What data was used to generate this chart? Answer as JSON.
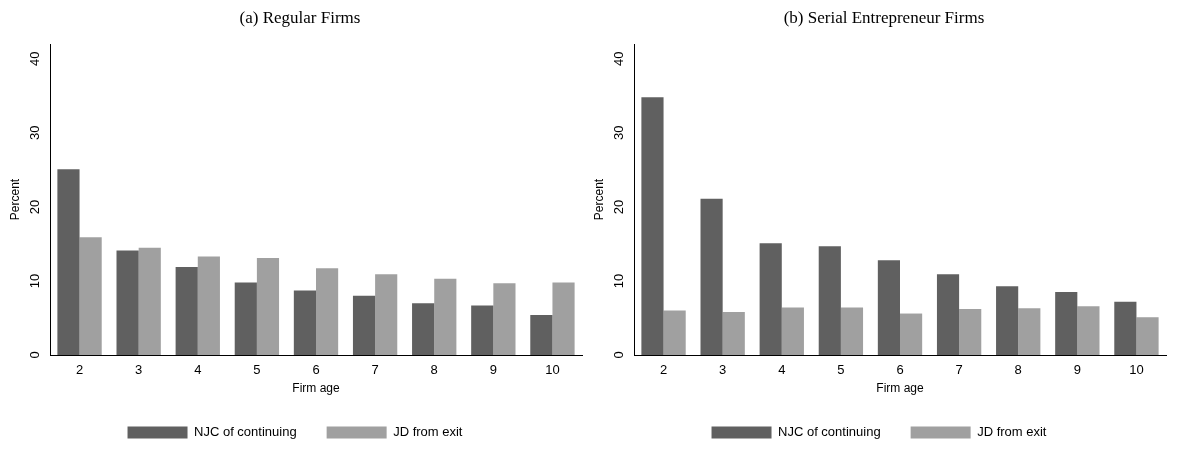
{
  "chart_data": [
    {
      "type": "bar",
      "title": "(a) Regular Firms",
      "xlabel": "Firm age",
      "ylabel": "Percent",
      "categories": [
        "2",
        "3",
        "4",
        "5",
        "6",
        "7",
        "8",
        "9",
        "10"
      ],
      "series": [
        {
          "name": "NJC of continuing",
          "color": "#606060",
          "values": [
            25.1,
            14.1,
            11.9,
            9.8,
            8.7,
            8.0,
            7.0,
            6.7,
            5.4
          ]
        },
        {
          "name": "JD from exit",
          "color": "#a0a0a0",
          "values": [
            15.9,
            14.5,
            13.3,
            13.1,
            11.7,
            10.9,
            10.3,
            9.7,
            9.8
          ]
        }
      ],
      "ylim": [
        0,
        42
      ],
      "yticks": [
        0,
        10,
        20,
        30,
        40
      ],
      "grid": false,
      "legend": "bottom"
    },
    {
      "type": "bar",
      "title": "(b) Serial Entrepreneur Firms",
      "xlabel": "Firm age",
      "ylabel": "Percent",
      "categories": [
        "2",
        "3",
        "4",
        "5",
        "6",
        "7",
        "8",
        "9",
        "10"
      ],
      "series": [
        {
          "name": "NJC of continuing",
          "color": "#606060",
          "values": [
            34.8,
            21.1,
            15.1,
            14.7,
            12.8,
            10.9,
            9.3,
            8.5,
            7.2
          ]
        },
        {
          "name": "JD from exit",
          "color": "#a0a0a0",
          "values": [
            6.0,
            5.8,
            6.4,
            6.4,
            5.6,
            6.2,
            6.3,
            6.6,
            5.1
          ]
        }
      ],
      "ylim": [
        0,
        42
      ],
      "yticks": [
        0,
        10,
        20,
        30,
        40
      ],
      "grid": false,
      "legend": "bottom"
    }
  ]
}
